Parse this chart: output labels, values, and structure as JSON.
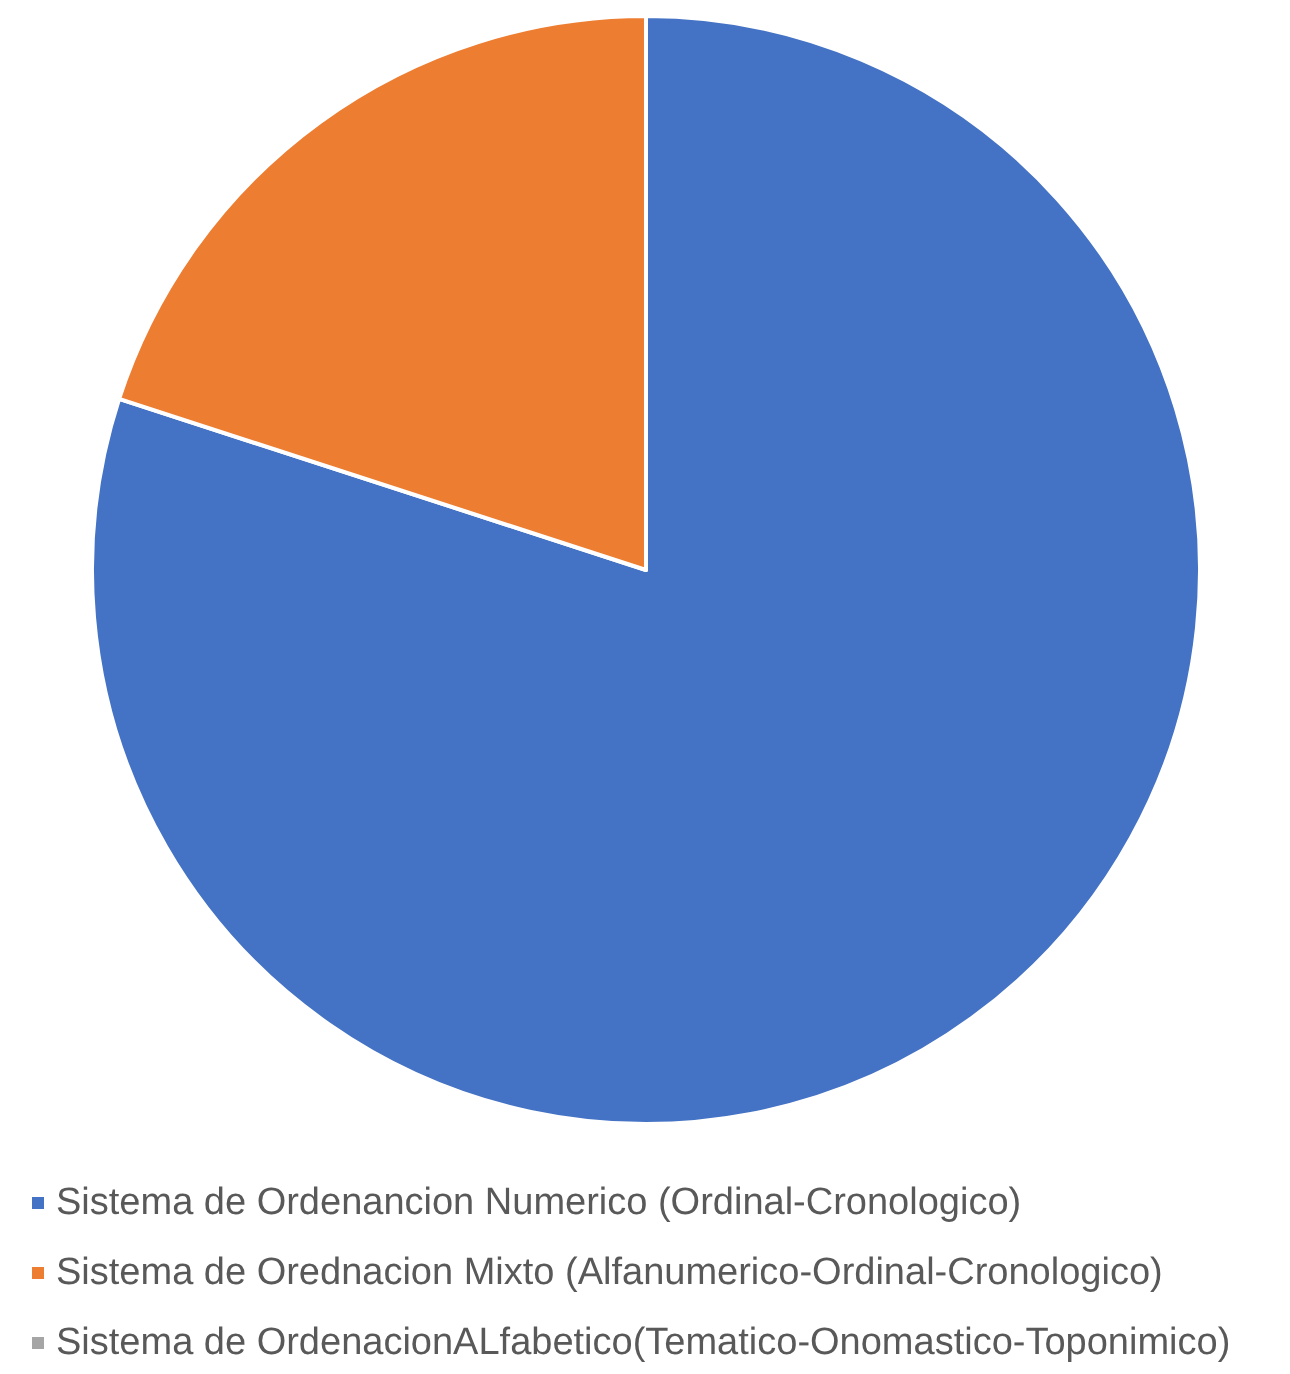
{
  "chart_data": {
    "type": "pie",
    "categories": [
      "Sistema de Ordenancion Numerico (Ordinal-Cronologico)",
      "Sistema de Orednacion Mixto (Alfanumerico-Ordinal-Cronologico)",
      "Sistema de OrdenacionALfabetico(Tematico-Onomastico-Toponimico)"
    ],
    "values": [
      80,
      20,
      0
    ],
    "colors": [
      "#4472c4",
      "#ed7d31",
      "#a5a5a5"
    ],
    "legend": "bottom left"
  }
}
